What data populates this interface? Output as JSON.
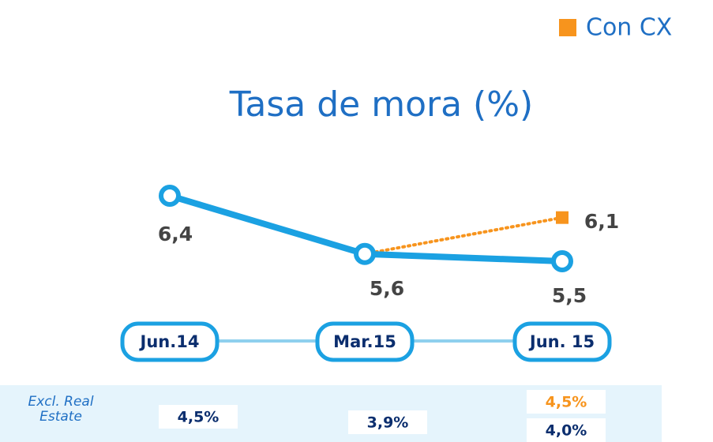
{
  "chart_data": {
    "type": "line",
    "title": "Tasa de mora (%)",
    "categories": [
      "Jun.14",
      "Mar.15",
      "Jun. 15"
    ],
    "series": [
      {
        "color": "#1ba1e2",
        "values": [
          6.4,
          5.6,
          5.5
        ],
        "value_labels": [
          "6,4",
          "5,6",
          "5,5"
        ]
      },
      {
        "name": "Con CX",
        "color": "#f7941d",
        "values": [
          null,
          5.6,
          6.1
        ],
        "value_labels": [
          null,
          null,
          "6,1"
        ]
      }
    ],
    "legend": "top-right",
    "footer_row": {
      "label": "Excl. Real Estate",
      "series": [
        {
          "color": "#0b2e6e",
          "values": [
            4.5,
            3.9,
            4.0
          ],
          "value_labels": [
            "4,5%",
            "3,9%",
            "4,0%"
          ]
        },
        {
          "color": "#f7941d",
          "values": [
            null,
            null,
            4.5
          ],
          "value_labels": [
            null,
            null,
            "4,5%"
          ]
        }
      ]
    }
  }
}
